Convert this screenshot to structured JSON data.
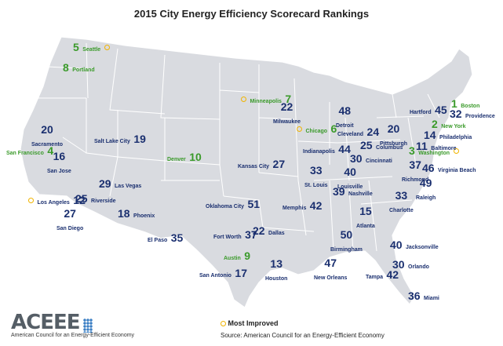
{
  "title": "2015 City Energy Efficiency Scorecard Rankings",
  "legend": {
    "most_improved": "Most Improved"
  },
  "source": "Source: American Council for an Energy-Efficient Economy",
  "logo": {
    "mark": "ACEEE",
    "tagline": "American Council for an Energy-Efficient Economy"
  },
  "colors": {
    "top_rank": "#3a9a2a",
    "standard_rank": "#1a2f6f",
    "most_improved": "#f0b400",
    "land": "#d9dbe0",
    "border": "#ffffff"
  },
  "cities": [
    {
      "id": "seattle",
      "name": "Seattle",
      "rank": "5",
      "tier": "top",
      "most_improved": true
    },
    {
      "id": "portland",
      "name": "Portland",
      "rank": "8",
      "tier": "top",
      "most_improved": false
    },
    {
      "id": "minneapolis",
      "name": "Minneapolis",
      "rank": "7",
      "tier": "top",
      "most_improved": true
    },
    {
      "id": "chicago",
      "name": "Chicago",
      "rank": "6",
      "tier": "top",
      "most_improved": true
    },
    {
      "id": "boston",
      "name": "Boston",
      "rank": "1",
      "tier": "top",
      "most_improved": false
    },
    {
      "id": "new-york",
      "name": "New York",
      "rank": "2",
      "tier": "top",
      "most_improved": false
    },
    {
      "id": "washington",
      "name": "Washington",
      "rank": "3",
      "tier": "top",
      "most_improved": true
    },
    {
      "id": "san-francisco",
      "name": "San Francisco",
      "rank": "4",
      "tier": "top",
      "most_improved": false
    },
    {
      "id": "denver",
      "name": "Denver",
      "rank": "10",
      "tier": "top",
      "most_improved": false
    },
    {
      "id": "austin",
      "name": "Austin",
      "rank": "9",
      "tier": "top",
      "most_improved": false
    },
    {
      "id": "sacramento",
      "name": "Sacramento",
      "rank": "20",
      "tier": "std",
      "most_improved": false
    },
    {
      "id": "san-jose",
      "name": "San Jose",
      "rank": "16",
      "tier": "std",
      "most_improved": false
    },
    {
      "id": "salt-lake-city",
      "name": "Salt Lake City",
      "rank": "19",
      "tier": "std",
      "most_improved": false
    },
    {
      "id": "las-vegas",
      "name": "Las Vegas",
      "rank": "29",
      "tier": "std",
      "most_improved": false
    },
    {
      "id": "los-angeles",
      "name": "Los Angeles",
      "rank": "12",
      "tier": "std",
      "most_improved": true
    },
    {
      "id": "riverside",
      "name": "Riverside",
      "rank": "25",
      "tier": "std",
      "most_improved": false
    },
    {
      "id": "san-diego",
      "name": "San Diego",
      "rank": "27",
      "tier": "std",
      "most_improved": false
    },
    {
      "id": "phoenix",
      "name": "Phoenix",
      "rank": "18",
      "tier": "std",
      "most_improved": false
    },
    {
      "id": "el-paso",
      "name": "El Paso",
      "rank": "35",
      "tier": "std",
      "most_improved": false
    },
    {
      "id": "kansas-city",
      "name": "Kansas City",
      "rank": "27",
      "tier": "std",
      "most_improved": false
    },
    {
      "id": "oklahoma-city",
      "name": "Oklahoma City",
      "rank": "51",
      "tier": "std",
      "most_improved": false
    },
    {
      "id": "fort-worth",
      "name": "Fort Worth",
      "rank": "37",
      "tier": "std",
      "most_improved": false
    },
    {
      "id": "dallas",
      "name": "Dallas",
      "rank": "22",
      "tier": "std",
      "most_improved": false
    },
    {
      "id": "san-antonio",
      "name": "San Antonio",
      "rank": "17",
      "tier": "std",
      "most_improved": false
    },
    {
      "id": "houston",
      "name": "Houston",
      "rank": "13",
      "tier": "std",
      "most_improved": false
    },
    {
      "id": "milwaukee",
      "name": "Milwaukee",
      "rank": "22",
      "tier": "std",
      "most_improved": false
    },
    {
      "id": "detroit",
      "name": "Detroit",
      "rank": "48",
      "tier": "std",
      "most_improved": false
    },
    {
      "id": "cleveland",
      "name": "Cleveland",
      "rank": "24",
      "tier": "std",
      "most_improved": false
    },
    {
      "id": "pittsburgh",
      "name": "Pittsburgh",
      "rank": "20",
      "tier": "std",
      "most_improved": false
    },
    {
      "id": "indianapolis",
      "name": "Indianapolis",
      "rank": "44",
      "tier": "std",
      "most_improved": false
    },
    {
      "id": "columbus",
      "name": "Columbus",
      "rank": "25",
      "tier": "std",
      "most_improved": false
    },
    {
      "id": "cincinnati",
      "name": "Cincinnati",
      "rank": "30",
      "tier": "std",
      "most_improved": false
    },
    {
      "id": "st-louis",
      "name": "St. Louis",
      "rank": "33",
      "tier": "std",
      "most_improved": false
    },
    {
      "id": "louisville",
      "name": "Louisville",
      "rank": "40",
      "tier": "std",
      "most_improved": false
    },
    {
      "id": "nashville",
      "name": "Nashville",
      "rank": "39",
      "tier": "std",
      "most_improved": false
    },
    {
      "id": "memphis",
      "name": "Memphis",
      "rank": "42",
      "tier": "std",
      "most_improved": false
    },
    {
      "id": "atlanta",
      "name": "Atlanta",
      "rank": "15",
      "tier": "std",
      "most_improved": false
    },
    {
      "id": "birmingham",
      "name": "Birmingham",
      "rank": "50",
      "tier": "std",
      "most_improved": false
    },
    {
      "id": "new-orleans",
      "name": "New Orleans",
      "rank": "47",
      "tier": "std",
      "most_improved": false
    },
    {
      "id": "jacksonville",
      "name": "Jacksonville",
      "rank": "40",
      "tier": "std",
      "most_improved": false
    },
    {
      "id": "orlando",
      "name": "Orlando",
      "rank": "30",
      "tier": "std",
      "most_improved": false
    },
    {
      "id": "tampa",
      "name": "Tampa",
      "rank": "42",
      "tier": "std",
      "most_improved": false
    },
    {
      "id": "miami",
      "name": "Miami",
      "rank": "36",
      "tier": "std",
      "most_improved": false
    },
    {
      "id": "charlotte",
      "name": "Charlotte",
      "rank": "33",
      "tier": "std",
      "most_improved": false
    },
    {
      "id": "raleigh",
      "name": "Raleigh",
      "rank": "49",
      "tier": "std",
      "most_improved": false
    },
    {
      "id": "richmond",
      "name": "Richmond",
      "rank": "37",
      "tier": "std",
      "most_improved": false
    },
    {
      "id": "virginia-beach",
      "name": "Virginia Beach",
      "rank": "46",
      "tier": "std",
      "most_improved": false
    },
    {
      "id": "baltimore",
      "name": "Baltimore",
      "rank": "11",
      "tier": "std",
      "most_improved": false
    },
    {
      "id": "philadelphia",
      "name": "Philadelphia",
      "rank": "14",
      "tier": "std",
      "most_improved": false
    },
    {
      "id": "hartford",
      "name": "Hartford",
      "rank": "45",
      "tier": "std",
      "most_improved": false
    },
    {
      "id": "providence",
      "name": "Providence",
      "rank": "32",
      "tier": "std",
      "most_improved": false
    }
  ]
}
